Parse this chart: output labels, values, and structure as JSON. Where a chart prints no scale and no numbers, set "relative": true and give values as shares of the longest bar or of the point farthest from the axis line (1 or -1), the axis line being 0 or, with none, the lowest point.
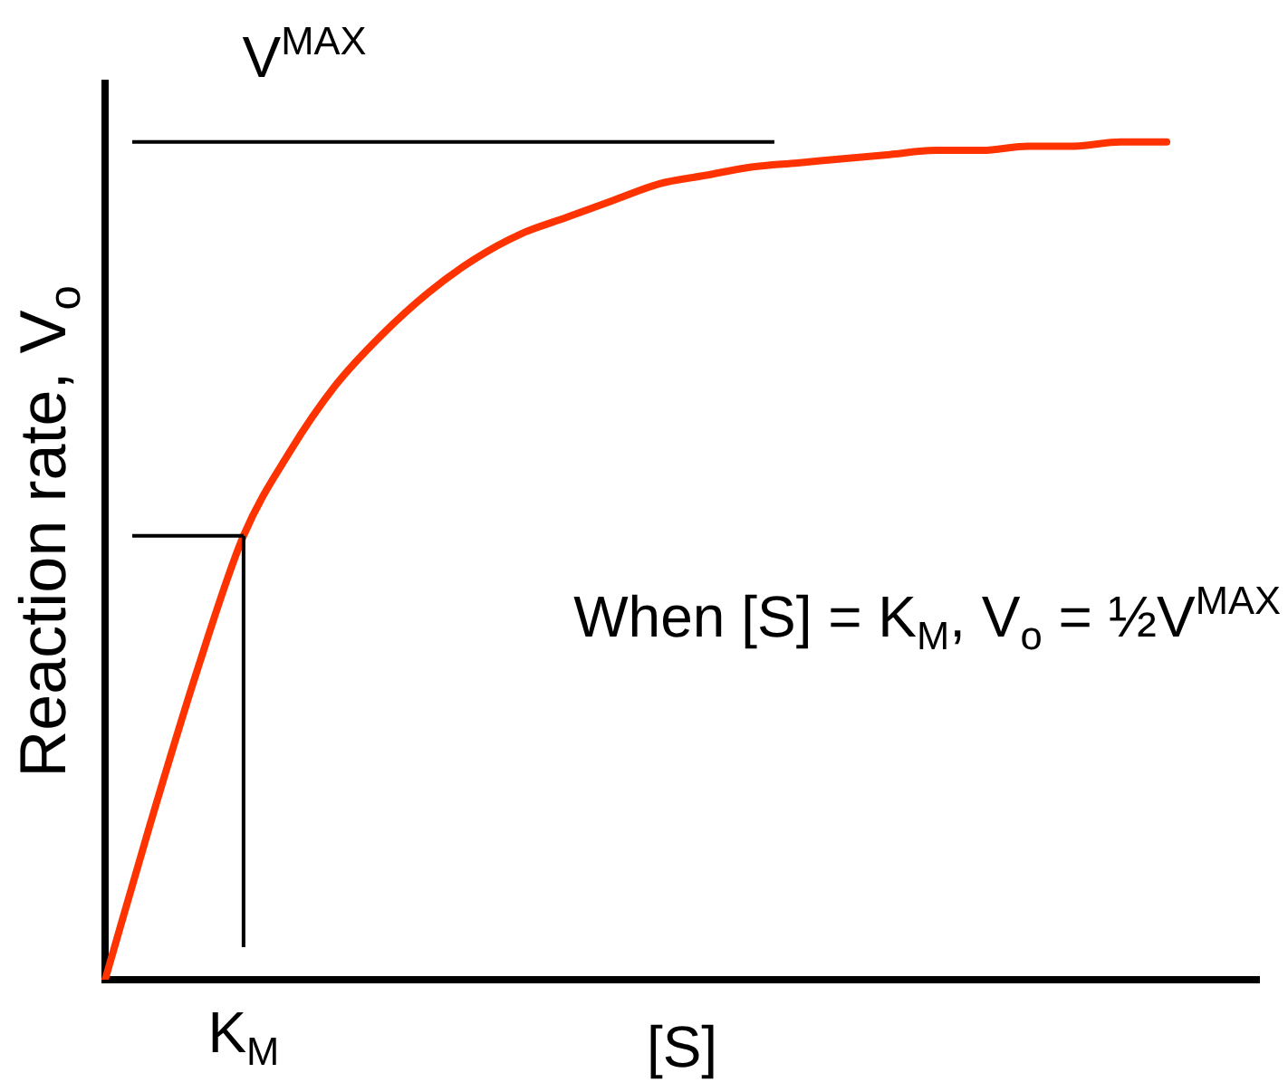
{
  "chart_data": {
    "type": "line",
    "relative": true,
    "xlabel": "[S]",
    "ylabel": "Reaction rate, V$_{o}$",
    "categories": [
      null,
      null,
      null,
      null,
      null,
      null,
      null,
      null,
      null,
      null,
      null,
      null,
      null,
      null,
      null,
      null,
      null,
      null,
      null,
      null,
      null,
      null,
      null,
      null,
      null,
      null
    ],
    "series": [
      {
        "color": "#ff3300",
        "values": [
          0,
          0.19,
          0.37,
          0.53,
          0.63,
          0.71,
          0.77,
          0.82,
          0.86,
          0.89,
          0.91,
          0.93,
          0.95,
          0.96,
          0.97,
          0.975,
          0.98,
          0.985,
          0.99,
          0.99,
          0.995,
          0.995,
          1,
          1,
          null,
          null
        ]
      }
    ],
    "ref_lines": [
      {
        "axis": "y",
        "value": 1,
        "label": "V$^{MAX}$"
      },
      {
        "axis": "y",
        "value": 0.53
      }
    ],
    "annotations": [
      "K$_{M}$",
      "When [S] = K$_{M}$, V$_{o}$ = ½V$^{MAX}$"
    ],
    "grid": false,
    "legend": false,
    "marker": "none",
    "line_style": "solid"
  }
}
